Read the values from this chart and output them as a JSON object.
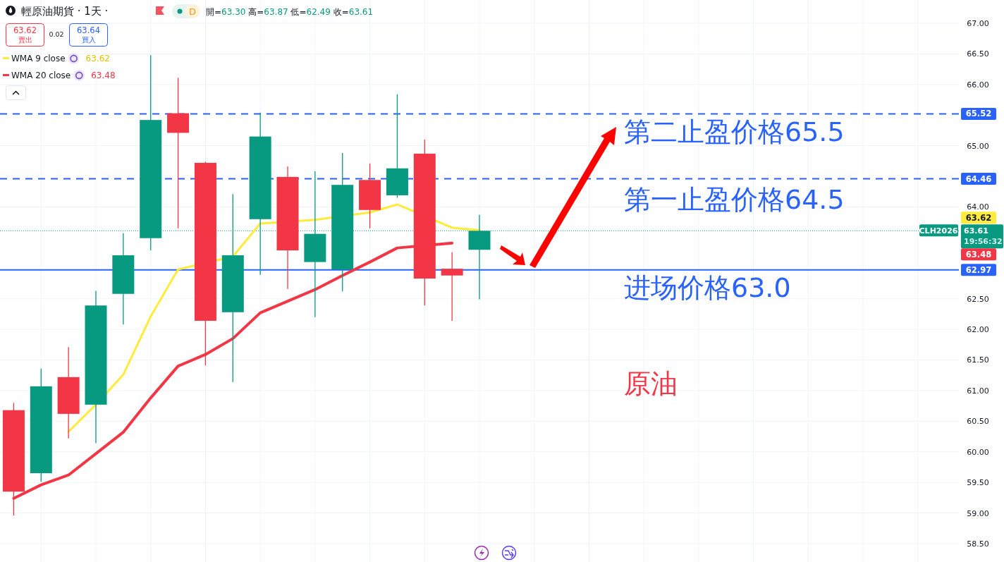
{
  "chart_data": {
    "type": "candlestick",
    "title": "輕原油期貨 · 1天 ·",
    "categories": [
      null,
      null,
      null,
      null,
      null,
      null,
      null,
      null,
      null,
      null,
      null,
      null,
      null,
      null,
      null,
      null,
      null,
      null,
      null,
      null,
      null,
      null,
      null,
      null,
      null,
      null,
      null,
      null,
      null,
      null,
      null,
      null,
      null,
      null,
      null
    ],
    "ohlc": [
      [
        60.68,
        60.8,
        58.96,
        59.35
      ],
      [
        59.65,
        61.36,
        59.51,
        61.07
      ],
      [
        61.22,
        61.71,
        60.22,
        60.62
      ],
      [
        60.77,
        62.63,
        60.14,
        62.39
      ],
      [
        62.58,
        63.57,
        62.08,
        63.21
      ],
      [
        63.49,
        66.48,
        63.29,
        65.42
      ],
      [
        65.53,
        66.11,
        63.65,
        65.21
      ],
      [
        64.72,
        64.74,
        61.41,
        62.14
      ],
      [
        62.28,
        64.21,
        61.14,
        63.21
      ],
      [
        63.8,
        65.54,
        62.89,
        65.15
      ],
      [
        64.49,
        64.66,
        62.66,
        63.29
      ],
      [
        63.1,
        64.58,
        62.2,
        63.56
      ],
      [
        62.98,
        64.88,
        62.62,
        64.36
      ],
      [
        64.44,
        64.71,
        63.65,
        63.95
      ],
      [
        64.19,
        65.84,
        64.15,
        64.63
      ],
      [
        64.87,
        65.1,
        62.39,
        62.83
      ],
      [
        62.99,
        63.26,
        62.14,
        62.88
      ],
      [
        63.3,
        63.87,
        62.49,
        63.61
      ],
      null,
      null,
      null,
      null,
      null,
      null,
      null,
      null,
      null,
      null,
      null,
      null,
      null,
      null,
      null,
      null,
      null
    ],
    "colors": [
      "#f23645",
      "#089981",
      "#f23645",
      "#089981",
      "#089981",
      "#089981",
      "#f23645",
      "#f23645",
      "#089981",
      "#089981",
      "#f23645",
      "#089981",
      "#089981",
      "#f23645",
      "#089981",
      "#f23645",
      "#f23645",
      "#089981",
      null,
      null,
      null,
      null,
      null,
      null,
      null,
      null,
      null,
      null,
      null,
      null,
      null,
      null,
      null,
      null,
      null
    ],
    "series": [
      {
        "name": "WMA 9 close",
        "type": "line",
        "color": "#ffeb3b",
        "values": [
          null,
          null,
          60.33,
          60.77,
          61.26,
          62.21,
          62.98,
          null,
          63.19,
          63.73,
          null,
          63.79,
          null,
          63.91,
          64.04,
          null,
          63.66,
          63.62,
          null,
          null,
          null,
          null,
          null,
          null,
          null,
          null,
          null,
          null,
          null,
          null,
          null,
          null,
          null,
          null,
          null
        ]
      },
      {
        "name": "WMA 20 close",
        "type": "line",
        "color": "#f23645",
        "values": [
          59.24,
          59.46,
          59.62,
          59.97,
          60.32,
          60.88,
          61.4,
          61.59,
          61.85,
          62.27,
          62.46,
          62.65,
          62.88,
          63.1,
          63.33,
          null,
          63.41,
          null,
          null,
          null,
          null,
          null,
          null,
          null,
          null,
          null,
          null,
          null,
          null,
          null,
          null,
          null,
          null,
          null,
          null
        ]
      }
    ],
    "ylim": [
      58.2,
      67.38
    ],
    "yticks": [
      {
        "value": 58.5,
        "label": "58.50"
      },
      {
        "value": 59,
        "label": "59.00"
      },
      {
        "value": 59.5,
        "label": "59.50"
      },
      {
        "value": 60,
        "label": "60.00"
      },
      {
        "value": 60.5,
        "label": "60.50"
      },
      {
        "value": 61,
        "label": "61.00"
      },
      {
        "value": 61.5,
        "label": "61.50"
      },
      {
        "value": 62,
        "label": "62.00"
      },
      {
        "value": 62.5,
        "label": "62.50"
      },
      {
        "value": 64,
        "label": "64.00"
      },
      {
        "value": 65,
        "label": "65.00"
      },
      {
        "value": 66,
        "label": "66.00"
      },
      {
        "value": 66.5,
        "label": "66.50"
      },
      {
        "value": 67,
        "label": "67.00"
      }
    ],
    "ref_lines": [
      {
        "axis": "y",
        "value": 65.52,
        "label": "65.52",
        "color": "#2962ff",
        "line_style": "dashed"
      },
      {
        "axis": "y",
        "value": 64.46,
        "label": "64.46",
        "color": "#2962ff",
        "line_style": "dashed"
      },
      {
        "axis": "y",
        "value": 62.97,
        "label": "62.97",
        "color": "#2962ff",
        "line_style": "solid"
      },
      {
        "axis": "y",
        "value": 63.61,
        "label": "CLH2026",
        "color": "#089981",
        "line_style": "dotted"
      }
    ],
    "annotations": [
      "開=63.30 高=63.87 低=62.49 收=63.61",
      "63.62",
      "賣出",
      "0.02",
      "63.64",
      "買入",
      "D",
      "19:56:32",
      "第二止盈价格65.5",
      "第一止盈价格64.5",
      "进场价格63.0",
      "原油",
      "63.62",
      "63.48",
      "63.61",
      "63.62",
      "63.48"
    ],
    "grid": true,
    "legend": "top left",
    "tick_labels": "y"
  }
}
